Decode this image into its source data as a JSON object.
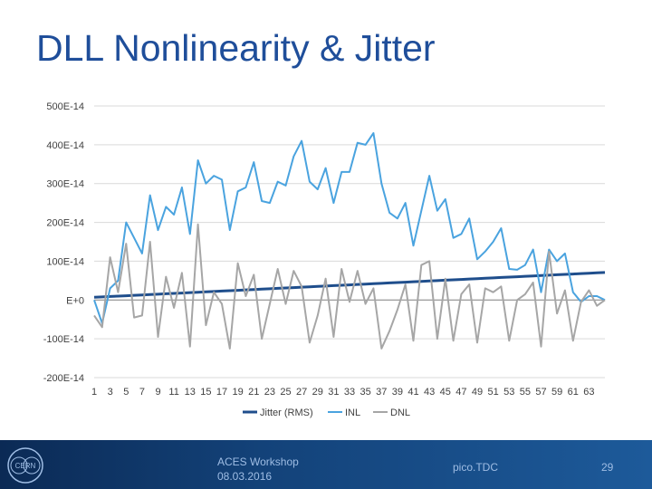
{
  "slide": {
    "title": "DLL Nonlinearity & Jitter",
    "footer_center_line1": "ACES Workshop",
    "footer_center_line2": "08.03.2016",
    "footer_middle": "pico.TDC",
    "page_number": "29",
    "logo_text": "CERN"
  },
  "colors": {
    "title": "#1f4e9a",
    "jitter": "#1f4e8c",
    "inl": "#4aa3df",
    "dnl": "#a6a6a6",
    "grid": "#d9d9d9",
    "footer": "#134279"
  },
  "chart_data": {
    "type": "line",
    "title": "",
    "xlabel": "",
    "ylabel": "",
    "ylim": [
      -200,
      500
    ],
    "y_ticks": [
      500,
      400,
      300,
      200,
      100,
      0,
      -100,
      -200
    ],
    "y_tick_labels": [
      "500E-14",
      "400E-14",
      "300E-14",
      "200E-14",
      "100E-14",
      "E+0",
      "-100E-14",
      "-200E-14"
    ],
    "x": [
      1,
      2,
      3,
      4,
      5,
      6,
      7,
      8,
      9,
      10,
      11,
      12,
      13,
      14,
      15,
      16,
      17,
      18,
      19,
      20,
      21,
      22,
      23,
      24,
      25,
      26,
      27,
      28,
      29,
      30,
      31,
      32,
      33,
      34,
      35,
      36,
      37,
      38,
      39,
      40,
      41,
      42,
      43,
      44,
      45,
      46,
      47,
      48,
      49,
      50,
      51,
      52,
      53,
      54,
      55,
      56,
      57,
      58,
      59,
      60,
      61,
      62,
      63,
      64,
      65
    ],
    "x_tick_labels": [
      "1",
      "3",
      "5",
      "7",
      "9",
      "11",
      "13",
      "15",
      "17",
      "19",
      "21",
      "23",
      "25",
      "27",
      "29",
      "31",
      "33",
      "35",
      "37",
      "39",
      "41",
      "43",
      "45",
      "47",
      "49",
      "51",
      "53",
      "55",
      "57",
      "59",
      "61",
      "63"
    ],
    "legend_position": "bottom",
    "series": [
      {
        "name": "Jitter (RMS)",
        "values": [
          7,
          8,
          9,
          10,
          11,
          12,
          13,
          14,
          15,
          16,
          17,
          18,
          19,
          20,
          21,
          22,
          23,
          24,
          25,
          26,
          27,
          28,
          29,
          30,
          31,
          32,
          33,
          34,
          35,
          36,
          37,
          38,
          39,
          40,
          41,
          42,
          43,
          44,
          45,
          46,
          47,
          48,
          49,
          50,
          51,
          52,
          53,
          54,
          55,
          56,
          57,
          58,
          59,
          60,
          61,
          62,
          63,
          64,
          65,
          66,
          67,
          68,
          69,
          70,
          71
        ]
      },
      {
        "name": "INL",
        "values": [
          0,
          -60,
          30,
          50,
          200,
          160,
          120,
          270,
          180,
          240,
          220,
          290,
          170,
          360,
          300,
          320,
          310,
          180,
          280,
          290,
          355,
          255,
          250,
          305,
          295,
          370,
          410,
          305,
          285,
          340,
          250,
          330,
          330,
          405,
          400,
          430,
          300,
          225,
          210,
          250,
          140,
          230,
          320,
          230,
          260,
          160,
          170,
          210,
          105,
          125,
          150,
          185,
          80,
          78,
          90,
          130,
          20,
          130,
          100,
          120,
          20,
          -5,
          10,
          10,
          0
        ]
      },
      {
        "name": "DNL",
        "values": [
          -40,
          -70,
          110,
          20,
          145,
          -45,
          -40,
          150,
          -95,
          60,
          -20,
          70,
          -120,
          195,
          -65,
          20,
          -10,
          -125,
          95,
          10,
          65,
          -100,
          -10,
          80,
          -10,
          75,
          35,
          -110,
          -40,
          55,
          -95,
          80,
          -5,
          75,
          -10,
          30,
          -125,
          -80,
          -25,
          40,
          -105,
          90,
          100,
          -100,
          55,
          -105,
          15,
          40,
          -110,
          30,
          20,
          35,
          -105,
          0,
          15,
          45,
          -120,
          125,
          -35,
          25,
          -105,
          -5,
          25,
          -15,
          0
        ]
      }
    ]
  }
}
